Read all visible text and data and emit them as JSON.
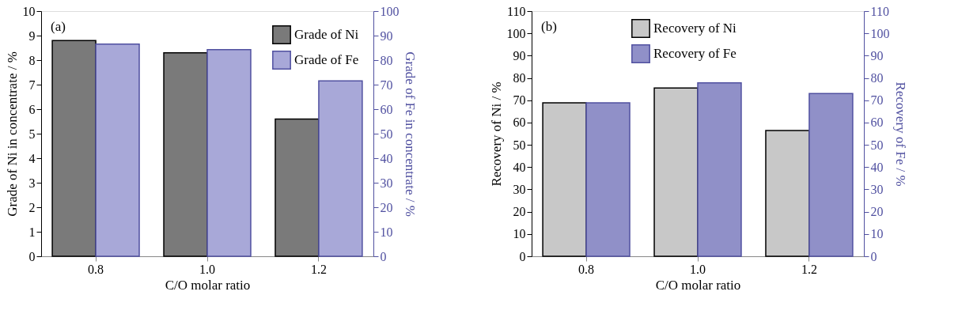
{
  "chart_data": [
    {
      "type": "bar",
      "categories": [
        "0.8",
        "1.0",
        "1.2"
      ],
      "xlabel": "C/O molar ratio",
      "ylabel": "Grade of Ni in concentrate / %",
      "y2label": "Grade of Fe in concentrate / %",
      "annotations": [
        "(a)"
      ],
      "series": [
        {
          "name": "Grade of Ni",
          "color": "#7a7a7a",
          "values": [
            8.8,
            8.3,
            5.6
          ]
        },
        {
          "name": "Grade of Fe",
          "color": "#a8a8d8",
          "values": [
            86.5,
            84.3,
            71.5
          ],
          "axis": "y2"
        }
      ],
      "ylim": [
        0,
        10
      ],
      "yticks": [
        0,
        1,
        2,
        3,
        4,
        5,
        6,
        7,
        8,
        9,
        10
      ],
      "y2lim": [
        0,
        100
      ],
      "y2ticks": [
        0,
        10,
        20,
        30,
        40,
        50,
        60,
        70,
        80,
        90,
        100
      ],
      "grid": false,
      "legend": "top right"
    },
    {
      "type": "bar",
      "categories": [
        "0.8",
        "1.0",
        "1.2"
      ],
      "xlabel": "C/O molar ratio",
      "ylabel": "Recovery of Ni / %",
      "y2label": "Recovery of Fe / %",
      "annotations": [
        "(b)"
      ],
      "series": [
        {
          "name": "Recovery of Ni",
          "color": "#c8c8c8",
          "values": [
            68.8,
            75.5,
            56.4
          ]
        },
        {
          "name": "Recovery of Fe",
          "color": "#9090c8",
          "values": [
            68.8,
            77.8,
            73.0
          ],
          "axis": "y2"
        }
      ],
      "ylim": [
        0,
        110
      ],
      "yticks": [
        0,
        10,
        20,
        30,
        40,
        50,
        60,
        70,
        80,
        90,
        100,
        110
      ],
      "y2lim": [
        0,
        110
      ],
      "y2ticks": [
        0,
        10,
        20,
        30,
        40,
        50,
        60,
        70,
        80,
        90,
        100,
        110
      ],
      "grid": false,
      "legend": "top"
    }
  ]
}
